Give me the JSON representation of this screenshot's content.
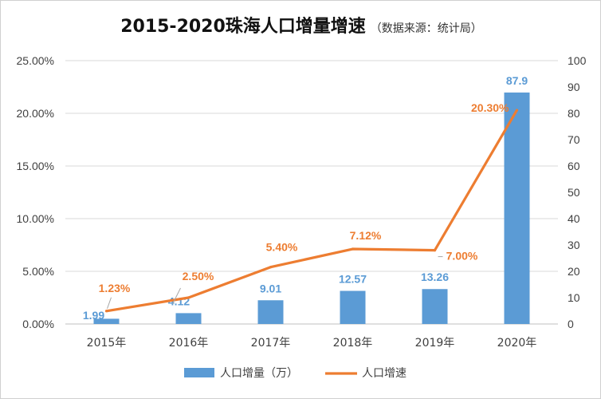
{
  "chart_data": {
    "type": "bar",
    "title": "2015-2020珠海人口增量增速",
    "subtitle": "（数据来源：统计局）",
    "categories": [
      "2015年",
      "2016年",
      "2017年",
      "2018年",
      "2019年",
      "2020年"
    ],
    "series": [
      {
        "name": "人口增量（万）",
        "type": "bar",
        "axis": "right",
        "values": [
          1.99,
          4.12,
          9.01,
          12.57,
          13.26,
          87.9
        ],
        "labels": [
          "1.99",
          "4.12",
          "9.01",
          "12.57",
          "13.26",
          "87.9"
        ],
        "color": "#5B9BD5"
      },
      {
        "name": "人口增速",
        "type": "line",
        "axis": "left",
        "values": [
          1.23,
          2.5,
          5.4,
          7.12,
          7.0,
          20.3
        ],
        "labels": [
          "1.23%",
          "2.50%",
          "5.40%",
          "7.12%",
          "7.00%",
          "20.30%"
        ],
        "color": "#ED7D31"
      }
    ],
    "y_left": {
      "min": 0,
      "max": 25,
      "ticks": [
        "0.00%",
        "5.00%",
        "10.00%",
        "15.00%",
        "20.00%",
        "25.00%"
      ]
    },
    "y_right": {
      "min": 0,
      "max": 100,
      "ticks": [
        "0",
        "10",
        "20",
        "30",
        "40",
        "50",
        "60",
        "70",
        "80",
        "90",
        "100"
      ]
    },
    "grid": true,
    "legend": "bottom"
  }
}
